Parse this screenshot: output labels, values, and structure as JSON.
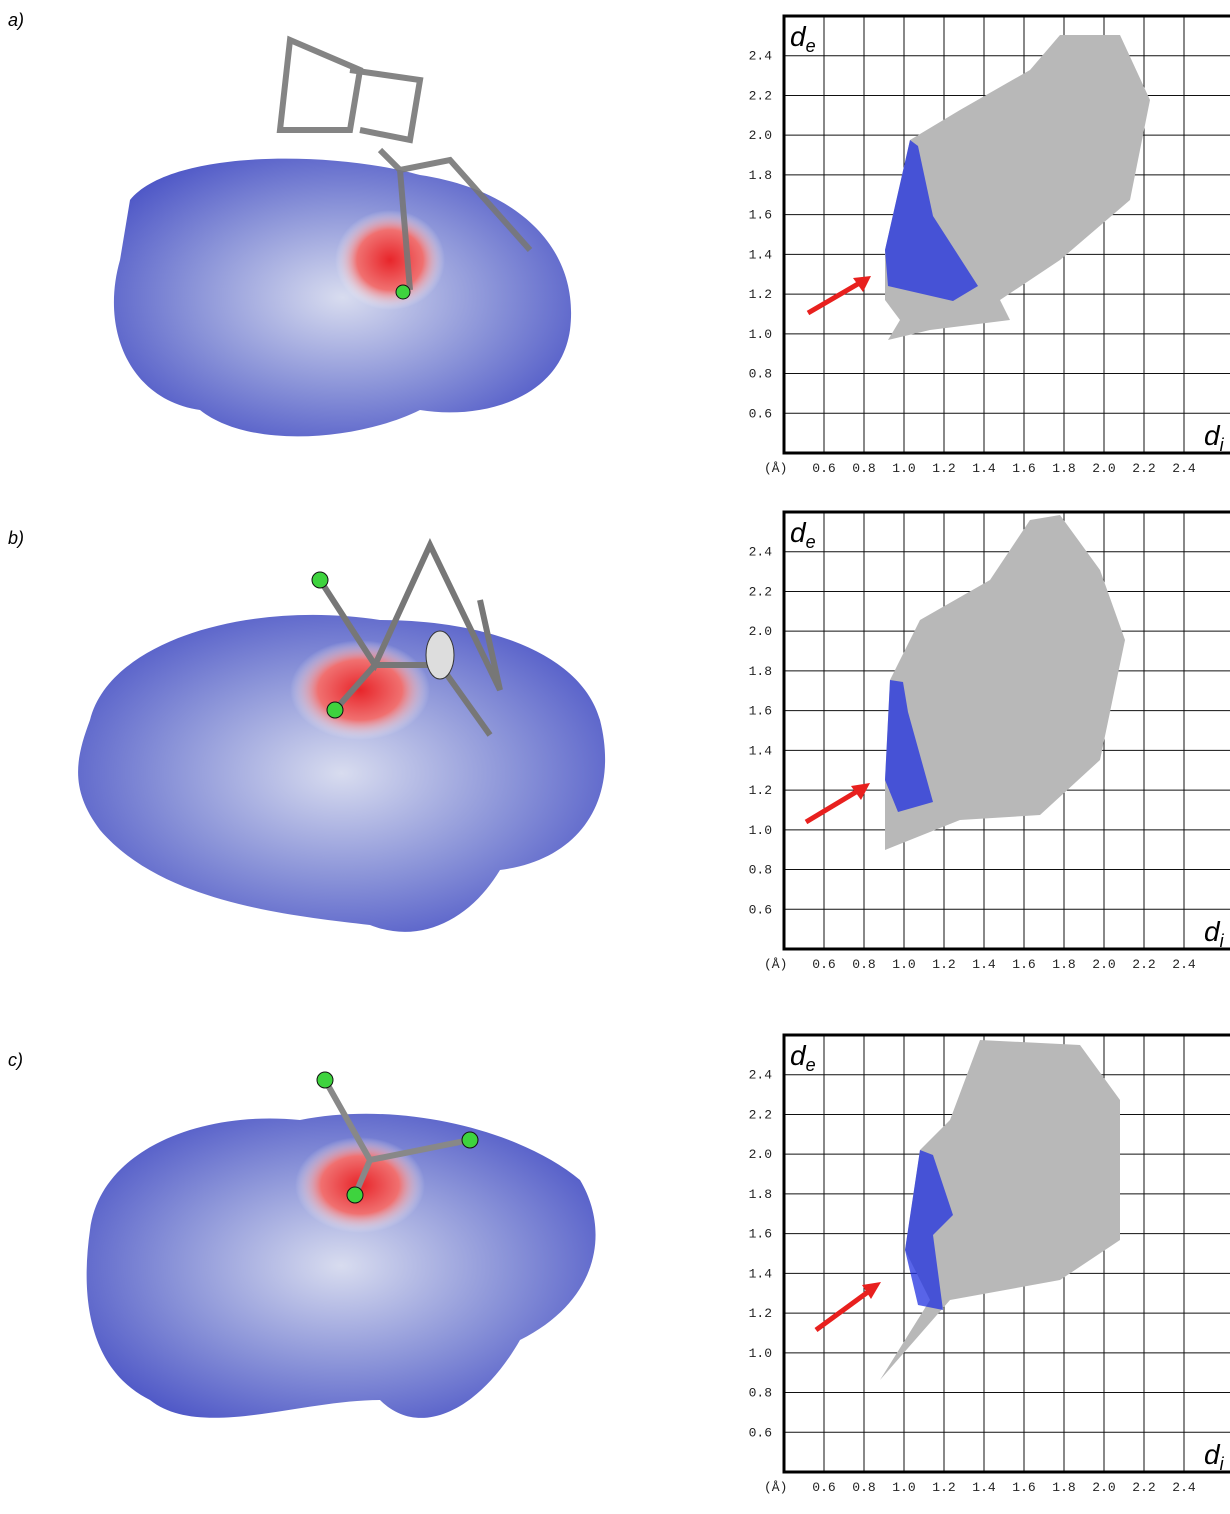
{
  "chart_data": [
    {
      "type": "fingerprint",
      "panel": "a)",
      "unit": "(Å)",
      "xlabel": "d",
      "xlabel_sub": "i",
      "ylabel": "d",
      "ylabel_sub": "e",
      "xlim": [
        0.4,
        2.6
      ],
      "ylim": [
        0.4,
        2.6
      ],
      "xticks": [
        0.6,
        0.8,
        {
          "value": 1,
          "label": "1.0"
        },
        1.2,
        1.4,
        1.6,
        1.8,
        {
          "value": 2,
          "label": "2.0"
        },
        2.2,
        2.4
      ],
      "yticks": [
        0.6,
        0.8,
        {
          "value": 1,
          "label": "1.0"
        },
        1.2,
        1.4,
        1.6,
        1.8,
        {
          "value": 2,
          "label": "2.0"
        },
        2.2,
        2.4
      ],
      "grid": true
    },
    {
      "type": "fingerprint",
      "panel": "b)",
      "unit": "(Å)",
      "xlabel": "d",
      "xlabel_sub": "i",
      "ylabel": "d",
      "ylabel_sub": "e",
      "xlim": [
        0.4,
        2.6
      ],
      "ylim": [
        0.4,
        2.6
      ],
      "xticks": [
        0.6,
        0.8,
        {
          "value": 1,
          "label": "1.0"
        },
        1.2,
        1.4,
        1.6,
        1.8,
        {
          "value": 2,
          "label": "2.0"
        },
        2.2,
        2.4
      ],
      "yticks": [
        0.6,
        0.8,
        {
          "value": 1,
          "label": "1.0"
        },
        1.2,
        1.4,
        1.6,
        1.8,
        {
          "value": 2,
          "label": "2.0"
        },
        2.2,
        2.4
      ],
      "grid": true
    },
    {
      "type": "fingerprint",
      "panel": "c)",
      "unit": "(Å)",
      "xlabel": "d",
      "xlabel_sub": "i",
      "ylabel": "d",
      "ylabel_sub": "e",
      "xlim": [
        0.4,
        2.6
      ],
      "ylim": [
        0.4,
        2.6
      ],
      "xticks": [
        0.6,
        0.8,
        {
          "value": 1,
          "label": "1.0"
        },
        1.2,
        1.4,
        1.6,
        1.8,
        {
          "value": 2,
          "label": "2.0"
        },
        2.2,
        2.4
      ],
      "yticks": [
        0.6,
        0.8,
        {
          "value": 1,
          "label": "1.0"
        },
        1.2,
        1.4,
        1.6,
        1.8,
        {
          "value": 2,
          "label": "2.0"
        },
        2.2,
        2.4
      ],
      "grid": true
    }
  ]
}
